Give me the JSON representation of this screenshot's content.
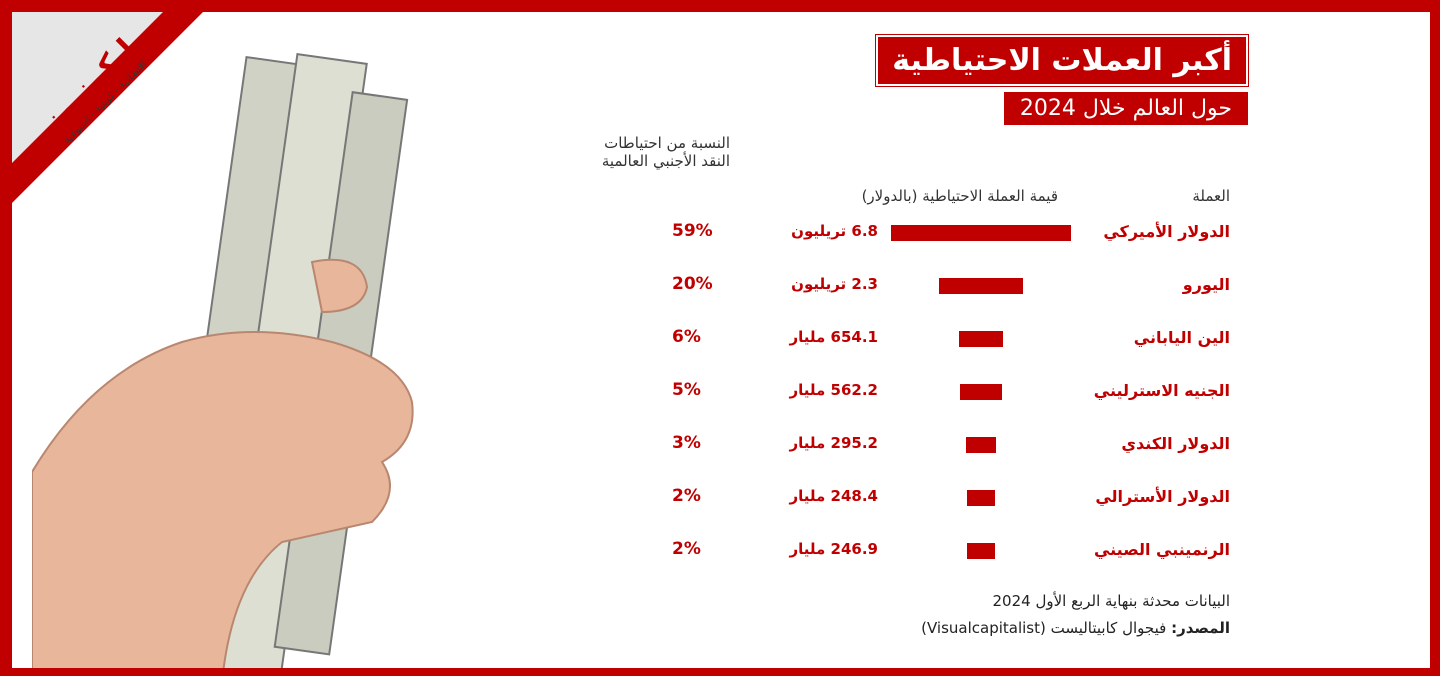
{
  "logo": {
    "name": "إيكونيوز",
    "tagline": "اقتصادية - كويتية - اسبوعية"
  },
  "colors": {
    "accent": "#c00000",
    "frame": "#c00000"
  },
  "chart_data": {
    "type": "bar",
    "title": "أكبر العملات الاحتياطية",
    "subtitle": "حول العالم خلال 2024",
    "headers": {
      "currency": "العملة",
      "value": "قيمة العملة الاحتياطية (بالدولار)",
      "share": "النسبة من احتياطات النقد الأجنبي العالمية"
    },
    "unit": "billion USD",
    "categories": [
      "الدولار الأميركي",
      "اليورو",
      "الين الياباني",
      "الجنيه الاسترليني",
      "الدولار الكندي",
      "الدولار الأسترالي",
      "الرنمينبي الصيني"
    ],
    "values": [
      6800,
      2300,
      654.1,
      562.2,
      295.2,
      248.4,
      246.9
    ],
    "value_labels": [
      "6.8 تريليون",
      "2.3 تريليون",
      "654.1 مليار",
      "562.2 مليار",
      "295.2 مليار",
      "248.4 مليار",
      "246.9 مليار"
    ],
    "shares": [
      "59%",
      "20%",
      "6%",
      "5%",
      "3%",
      "2%",
      "2%"
    ]
  },
  "footer": {
    "note": "البيانات محدثة بنهاية الربع الأول 2024",
    "source_label": "المصدر:",
    "source": "فيجوال كابيتاليست (Visualcapitalist)"
  }
}
